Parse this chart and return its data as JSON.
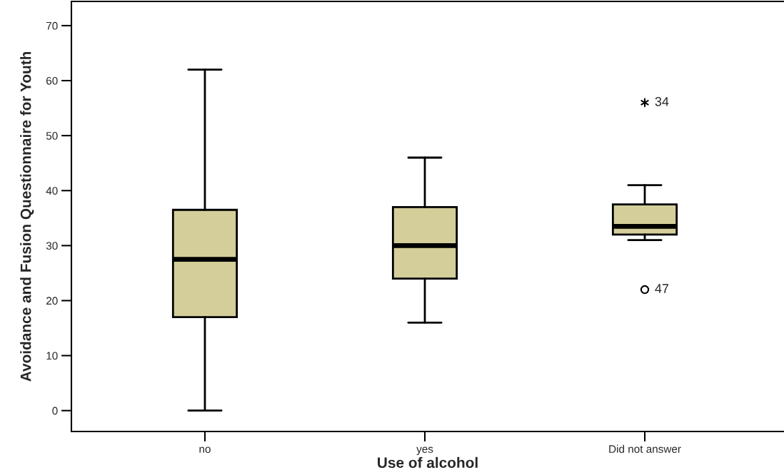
{
  "chart_data": {
    "type": "box",
    "xlabel": "Use of alcohol",
    "ylabel": "Avoidance and Fusion Questionnaire for Youth",
    "categories": [
      "no",
      "yes",
      "Did not answer"
    ],
    "color": "#d4cf9a",
    "boxes": [
      {
        "low": 0,
        "q1": 17,
        "median": 27.5,
        "q3": 36.5,
        "high": 62
      },
      {
        "low": 16,
        "q1": 24,
        "median": 30,
        "q3": 37,
        "high": 46
      },
      {
        "low": 31,
        "q1": 32,
        "median": 33.5,
        "q3": 37.5,
        "high": 41,
        "outliers": [
          56,
          22
        ]
      }
    ],
    "annotations": [
      "34",
      "47"
    ],
    "ylim": [
      -3.8,
      74.4
    ],
    "yticks": [
      0,
      10,
      20,
      30,
      40,
      50,
      60,
      70
    ],
    "grid": false
  }
}
